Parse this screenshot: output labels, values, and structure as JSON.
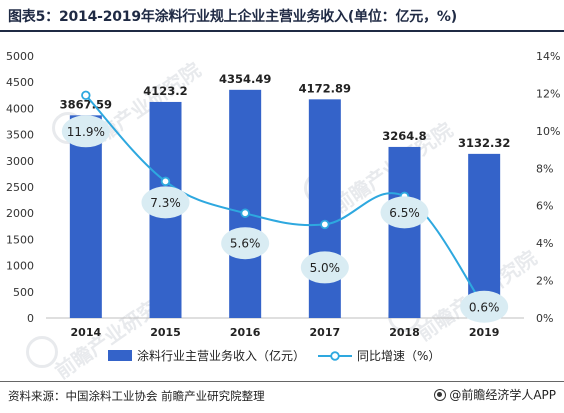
{
  "title": "图表5：2014-2019年涂料行业规上企业主营业务收入(单位：亿元，%)",
  "footer": {
    "source": "资料来源：中国涂料工业协会 前瞻产业研究院整理",
    "brand": "@前瞻经济学人APP",
    "brand_icon": "logo-icon"
  },
  "watermark": "前瞻产业研究院",
  "colors": {
    "bar": "#3463c9",
    "line": "#2ea8df",
    "bubble": "#d9ecf3",
    "title": "#1f2a44"
  },
  "chart_data": {
    "type": "bar",
    "categories": [
      "2014",
      "2015",
      "2016",
      "2017",
      "2018",
      "2019"
    ],
    "series": [
      {
        "name": "涂料行业主营业务收入（亿元）",
        "type": "bar",
        "axis": "left",
        "values": [
          3867.59,
          4123.2,
          4354.49,
          4172.89,
          3264.8,
          3132.32
        ],
        "labels": [
          "3867.59",
          "4123.2",
          "4354.49",
          "4172.89",
          "3264.8",
          "3132.32"
        ]
      },
      {
        "name": "同比增速（%）",
        "type": "line",
        "axis": "right",
        "values": [
          11.9,
          7.3,
          5.6,
          5.0,
          6.5,
          0.6
        ],
        "labels": [
          "11.9%",
          "7.3%",
          "5.6%",
          "5.0%",
          "6.5%",
          "0.6%"
        ]
      }
    ],
    "y_left": {
      "min": 0,
      "max": 5000,
      "step": 500,
      "ticks": [
        "0",
        "500",
        "1000",
        "1500",
        "2000",
        "2500",
        "3000",
        "3500",
        "4000",
        "4500",
        "5000"
      ]
    },
    "y_right": {
      "min": 0,
      "max": 14,
      "step": 2,
      "ticks": [
        "0%",
        "2%",
        "4%",
        "6%",
        "8%",
        "10%",
        "12%",
        "14%"
      ]
    },
    "grid": false,
    "legend": "bottom"
  }
}
